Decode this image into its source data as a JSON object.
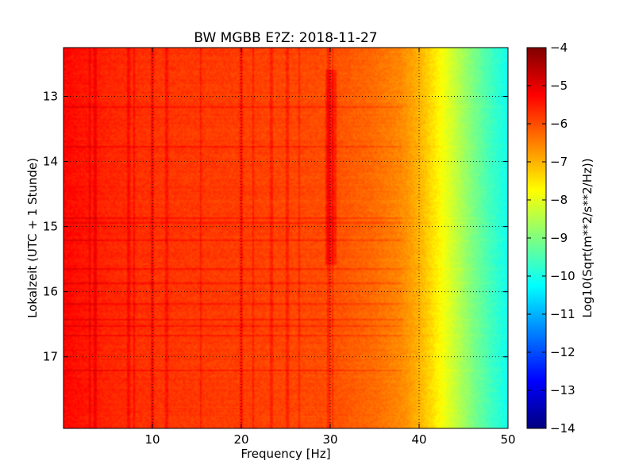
{
  "chart_data": {
    "type": "heatmap",
    "title": "BW MGBB E?Z: 2018-11-27",
    "xlabel": "Frequency [Hz]",
    "ylabel": "Lokalzeit (UTC + 1 Stunde)",
    "xlim": [
      0,
      50
    ],
    "ylim": [
      12.25,
      18.1
    ],
    "x_ticks": [
      10,
      20,
      30,
      40,
      50
    ],
    "x_tick_labels": [
      "10",
      "20",
      "30",
      "40",
      "50"
    ],
    "y_ticks": [
      13,
      14,
      15,
      16,
      17
    ],
    "y_tick_labels": [
      "13",
      "14",
      "15",
      "16",
      "17"
    ],
    "grid": true,
    "colormap": "jet",
    "colorbar": {
      "label": "Log10(Sqrt(m**2/s**2/Hz))",
      "range": [
        -14,
        -4
      ],
      "ticks": [
        -4,
        -5,
        -6,
        -7,
        -8,
        -9,
        -10,
        -11,
        -12,
        -13,
        -14
      ],
      "tick_labels": [
        "−4",
        "−5",
        "−6",
        "−7",
        "−8",
        "−9",
        "−10",
        "−11",
        "−12",
        "−13",
        "−14"
      ]
    },
    "spectrum_profile": {
      "frequencies_hz": [
        0,
        5,
        10,
        20,
        30,
        35,
        38,
        40,
        42,
        44,
        46,
        48,
        50
      ],
      "log_amplitude": [
        -5.3,
        -5.6,
        -5.75,
        -5.85,
        -6.0,
        -6.3,
        -6.6,
        -7.0,
        -7.6,
        -8.3,
        -9.0,
        -9.6,
        -10.1
      ]
    },
    "spectral_lines_hz": [
      3.0,
      3.6,
      7.3,
      7.9,
      10.0,
      11.6,
      15.5,
      20.0,
      21.3,
      23.4,
      25.2,
      26.5,
      29.8,
      30.3
    ],
    "strong_line_time_range": [
      12.6,
      15.6
    ],
    "strong_line_freq_range_hz": [
      29.5,
      30.8
    ]
  },
  "colors": {
    "colormap_stops": [
      "#00007f",
      "#0000ff",
      "#007fff",
      "#00ffff",
      "#7fff7f",
      "#ffff00",
      "#ff7f00",
      "#ff0000",
      "#7f0000"
    ]
  }
}
